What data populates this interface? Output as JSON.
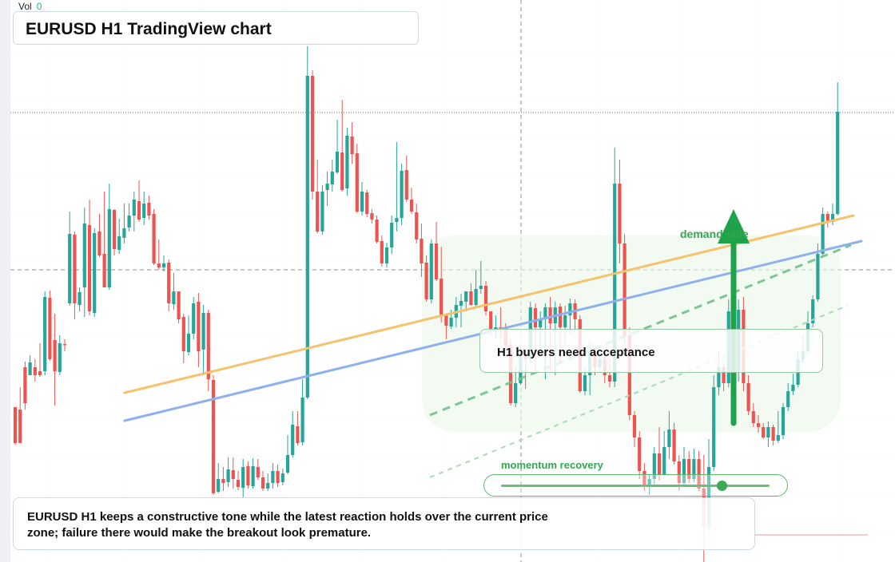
{
  "title": "EURUSD H1 TradingView chart",
  "volume": {
    "label": "Vol",
    "value": "0"
  },
  "callout": "H1 buyers need acceptance",
  "zone_label": "demand side",
  "momentum": {
    "label": "momentum recovery",
    "level": 0.82
  },
  "summary": "EURUSD H1 keeps a constructive tone while the latest reaction holds over the current price zone; failure there would make the breakout look premature.",
  "colors": {
    "up": "#26a69a",
    "down": "#ef5350",
    "orange_line": "#f6c26b",
    "blue_line": "#8fb0ee",
    "arrow": "#1fa24a",
    "zone": "#e9f6ea"
  },
  "chart_data": {
    "type": "candlestick",
    "symbol": "EURUSD",
    "timeframe": "H1",
    "ylim": [
      0,
      704
    ],
    "candles": [
      [
        0,
        510,
        555,
        510,
        557
      ],
      [
        1,
        513,
        555,
        485,
        555
      ],
      [
        2,
        460,
        505,
        453,
        513
      ],
      [
        3,
        470,
        454,
        445,
        470
      ],
      [
        4,
        460,
        470,
        450,
        478
      ],
      [
        5,
        465,
        470,
        430,
        472
      ],
      [
        6,
        465,
        372,
        365,
        470
      ],
      [
        7,
        373,
        450,
        364,
        452
      ],
      [
        8,
        426,
        465,
        393,
        508
      ],
      [
        9,
        466,
        430,
        420,
        470
      ],
      [
        10,
        431,
        432,
        425,
        440
      ],
      [
        11,
        380,
        293,
        265,
        383
      ],
      [
        12,
        294,
        380,
        290,
        400
      ],
      [
        13,
        382,
        366,
        360,
        390
      ],
      [
        14,
        360,
        280,
        260,
        397
      ],
      [
        15,
        282,
        390,
        250,
        395
      ],
      [
        16,
        392,
        292,
        286,
        397
      ],
      [
        17,
        290,
        320,
        268,
        322
      ],
      [
        18,
        318,
        360,
        240,
        360
      ],
      [
        19,
        360,
        262,
        230,
        363
      ],
      [
        20,
        263,
        312,
        262,
        320
      ],
      [
        21,
        313,
        296,
        274,
        318
      ],
      [
        22,
        298,
        286,
        255,
        305
      ],
      [
        23,
        285,
        270,
        255,
        290
      ],
      [
        24,
        270,
        250,
        240,
        290
      ],
      [
        25,
        252,
        275,
        226,
        278
      ],
      [
        26,
        273,
        255,
        240,
        282
      ],
      [
        27,
        254,
        270,
        245,
        275
      ],
      [
        28,
        268,
        330,
        262,
        332
      ],
      [
        29,
        330,
        335,
        300,
        338
      ],
      [
        30,
        335,
        330,
        320,
        340
      ],
      [
        31,
        329,
        380,
        325,
        390
      ],
      [
        32,
        381,
        365,
        342,
        388
      ],
      [
        33,
        365,
        400,
        370,
        405
      ],
      [
        34,
        397,
        440,
        393,
        455
      ],
      [
        35,
        441,
        418,
        395,
        445
      ],
      [
        36,
        418,
        380,
        372,
        425
      ],
      [
        37,
        378,
        440,
        367,
        460
      ],
      [
        38,
        438,
        392,
        382,
        470
      ],
      [
        39,
        392,
        475,
        388,
        490
      ],
      [
        40,
        476,
        618,
        470,
        620
      ],
      [
        41,
        616,
        600,
        580,
        618
      ],
      [
        42,
        600,
        605,
        585,
        615
      ],
      [
        43,
        604,
        588,
        573,
        610
      ],
      [
        44,
        589,
        600,
        573,
        612
      ],
      [
        45,
        601,
        610,
        590,
        614
      ],
      [
        46,
        611,
        585,
        575,
        625
      ],
      [
        47,
        584,
        608,
        578,
        612
      ],
      [
        48,
        609,
        584,
        574,
        612
      ],
      [
        49,
        585,
        598,
        575,
        601
      ],
      [
        50,
        598,
        612,
        590,
        615
      ],
      [
        51,
        612,
        605,
        593,
        615
      ],
      [
        52,
        605,
        590,
        580,
        612
      ],
      [
        53,
        590,
        605,
        582,
        610
      ],
      [
        54,
        604,
        593,
        587,
        608
      ],
      [
        55,
        592,
        570,
        545,
        594
      ],
      [
        56,
        570,
        532,
        515,
        573
      ],
      [
        57,
        534,
        555,
        515,
        558
      ],
      [
        58,
        554,
        498,
        475,
        558
      ],
      [
        59,
        498,
        95,
        58,
        500
      ],
      [
        60,
        95,
        240,
        88,
        250
      ],
      [
        61,
        240,
        290,
        200,
        292
      ],
      [
        62,
        290,
        240,
        232,
        294
      ],
      [
        63,
        238,
        230,
        215,
        258
      ],
      [
        64,
        231,
        215,
        200,
        240
      ],
      [
        65,
        216,
        190,
        150,
        218
      ],
      [
        66,
        191,
        238,
        125,
        240
      ],
      [
        67,
        236,
        170,
        160,
        245
      ],
      [
        68,
        171,
        193,
        153,
        205
      ],
      [
        69,
        192,
        265,
        180,
        267
      ],
      [
        70,
        265,
        240,
        228,
        270
      ],
      [
        71,
        241,
        268,
        238,
        272
      ],
      [
        72,
        267,
        275,
        262,
        280
      ],
      [
        73,
        275,
        303,
        270,
        305
      ],
      [
        74,
        302,
        330,
        295,
        334
      ],
      [
        75,
        330,
        310,
        304,
        335
      ],
      [
        76,
        310,
        279,
        270,
        318
      ],
      [
        77,
        278,
        273,
        178,
        290
      ],
      [
        78,
        273,
        214,
        205,
        282
      ],
      [
        79,
        213,
        250,
        195,
        253
      ],
      [
        80,
        250,
        265,
        235,
        268
      ],
      [
        81,
        266,
        300,
        255,
        305
      ],
      [
        82,
        299,
        330,
        280,
        347
      ],
      [
        83,
        329,
        375,
        320,
        378
      ],
      [
        84,
        375,
        305,
        300,
        380
      ],
      [
        85,
        305,
        350,
        278,
        352
      ],
      [
        86,
        349,
        395,
        309,
        404
      ],
      [
        87,
        395,
        408,
        398,
        425
      ],
      [
        88,
        409,
        398,
        388,
        412
      ],
      [
        89,
        398,
        382,
        372,
        410
      ],
      [
        90,
        383,
        377,
        368,
        410
      ],
      [
        91,
        378,
        365,
        372,
        390
      ],
      [
        92,
        365,
        382,
        355,
        383
      ],
      [
        93,
        382,
        362,
        338,
        385
      ],
      [
        94,
        362,
        358,
        327,
        368
      ],
      [
        95,
        358,
        390,
        352,
        395
      ],
      [
        96,
        390,
        415,
        390,
        420
      ],
      [
        97,
        414,
        410,
        395,
        424
      ],
      [
        98,
        410,
        412,
        385,
        425
      ],
      [
        99,
        410,
        433,
        405,
        437
      ],
      [
        100,
        432,
        505,
        425,
        508
      ],
      [
        101,
        505,
        480,
        460,
        510
      ],
      [
        102,
        480,
        445,
        432,
        482
      ],
      [
        103,
        445,
        450,
        440,
        487
      ],
      [
        104,
        450,
        385,
        378,
        455
      ],
      [
        105,
        386,
        410,
        380,
        465
      ],
      [
        106,
        410,
        400,
        390,
        445
      ],
      [
        107,
        400,
        385,
        380,
        475
      ],
      [
        108,
        385,
        405,
        372,
        465
      ],
      [
        109,
        405,
        385,
        378,
        470
      ],
      [
        110,
        384,
        410,
        380,
        455
      ],
      [
        111,
        410,
        395,
        383,
        430
      ],
      [
        112,
        395,
        380,
        374,
        418
      ],
      [
        113,
        380,
        400,
        375,
        415
      ],
      [
        114,
        400,
        490,
        395,
        492
      ],
      [
        115,
        490,
        470,
        460,
        495
      ],
      [
        116,
        470,
        440,
        430,
        495
      ],
      [
        117,
        440,
        460,
        438,
        470
      ],
      [
        118,
        460,
        450,
        440,
        465
      ],
      [
        119,
        450,
        470,
        445,
        480
      ],
      [
        120,
        470,
        478,
        450,
        485
      ],
      [
        121,
        478,
        230,
        185,
        485
      ],
      [
        122,
        230,
        305,
        200,
        330
      ],
      [
        123,
        305,
        420,
        293,
        430
      ],
      [
        124,
        420,
        520,
        410,
        526
      ],
      [
        125,
        520,
        548,
        515,
        560
      ],
      [
        126,
        548,
        590,
        540,
        600
      ],
      [
        127,
        590,
        610,
        580,
        615
      ],
      [
        128,
        610,
        600,
        595,
        620
      ],
      [
        129,
        600,
        568,
        560,
        608
      ],
      [
        130,
        568,
        595,
        535,
        602
      ],
      [
        131,
        594,
        560,
        540,
        596
      ],
      [
        132,
        560,
        538,
        515,
        575
      ],
      [
        133,
        538,
        578,
        530,
        582
      ],
      [
        134,
        578,
        605,
        570,
        615
      ],
      [
        135,
        605,
        575,
        560,
        610
      ],
      [
        136,
        575,
        600,
        565,
        605
      ],
      [
        137,
        600,
        575,
        562,
        604
      ],
      [
        138,
        575,
        612,
        565,
        615
      ],
      [
        139,
        612,
        660,
        570,
        704
      ],
      [
        140,
        660,
        585,
        550,
        670
      ],
      [
        141,
        585,
        485,
        470,
        590
      ],
      [
        142,
        485,
        460,
        440,
        495
      ],
      [
        143,
        460,
        480,
        455,
        490
      ],
      [
        144,
        480,
        390,
        375,
        485
      ],
      [
        145,
        390,
        465,
        372,
        470
      ],
      [
        146,
        465,
        388,
        375,
        478
      ],
      [
        147,
        388,
        480,
        372,
        490
      ],
      [
        148,
        480,
        515,
        470,
        520
      ],
      [
        149,
        515,
        530,
        505,
        535
      ],
      [
        150,
        530,
        535,
        520,
        542
      ],
      [
        151,
        535,
        548,
        530,
        550
      ],
      [
        152,
        548,
        535,
        528,
        560
      ],
      [
        153,
        535,
        552,
        532,
        558
      ],
      [
        154,
        552,
        545,
        515,
        555
      ],
      [
        155,
        545,
        510,
        505,
        550
      ],
      [
        156,
        510,
        490,
        480,
        515
      ],
      [
        157,
        490,
        482,
        468,
        495
      ],
      [
        158,
        482,
        450,
        440,
        485
      ],
      [
        159,
        450,
        440,
        420,
        455
      ],
      [
        160,
        440,
        405,
        390,
        442
      ],
      [
        161,
        405,
        375,
        370,
        410
      ],
      [
        162,
        375,
        318,
        305,
        378
      ],
      [
        163,
        318,
        268,
        260,
        322
      ],
      [
        164,
        268,
        278,
        265,
        285
      ],
      [
        165,
        278,
        268,
        255,
        282
      ],
      [
        166,
        268,
        140,
        103,
        270
      ]
    ],
    "lines": [
      {
        "name": "",
        "from": [
          156,
          492
        ],
        "to": [
          1068,
          270
        ],
        "color": "#f6c26b"
      },
      {
        "name": "",
        "from": [
          156,
          527
        ],
        "to": [
          1078,
          302
        ],
        "color": "#8fb0ee"
      }
    ],
    "grid": true
  }
}
